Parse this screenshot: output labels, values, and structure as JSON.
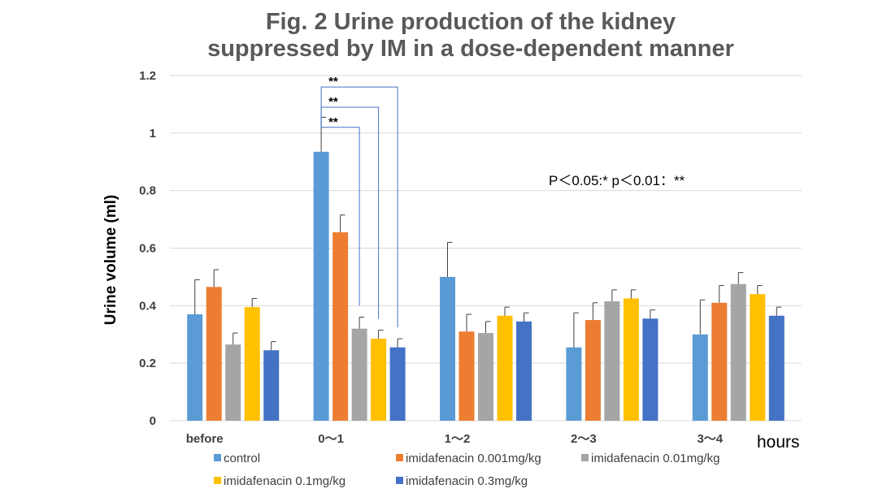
{
  "chart_data": {
    "type": "bar",
    "title_lines": [
      "Fig. 2 Urine production of the kidney",
      "suppressed by IM in a dose-dependent manner"
    ],
    "ylabel": "Urine volume (ml)",
    "xlabel": "hours",
    "ylim": [
      0,
      1.2
    ],
    "yticks": [
      "0",
      "0.2",
      "0.4",
      "0.6",
      "0.8",
      "1",
      "1.2"
    ],
    "categories": [
      "before",
      "0～1",
      "1～2",
      "2～3",
      "3～4"
    ],
    "grid": true,
    "legend_position": "bottom",
    "series": [
      {
        "name": "control",
        "color": "#5B9BD5",
        "values": [
          0.37,
          0.935,
          0.5,
          0.255,
          0.3
        ],
        "errors": [
          0.12,
          0.12,
          0.12,
          0.12,
          0.12
        ]
      },
      {
        "name": "imidafenacin 0.001mg/kg",
        "color": "#ED7D31",
        "values": [
          0.465,
          0.655,
          0.31,
          0.35,
          0.41
        ],
        "errors": [
          0.06,
          0.06,
          0.06,
          0.06,
          0.06
        ]
      },
      {
        "name": "imidafenacin 0.01mg/kg",
        "color": "#A5A5A5",
        "values": [
          0.265,
          0.32,
          0.305,
          0.415,
          0.475
        ],
        "errors": [
          0.04,
          0.04,
          0.04,
          0.04,
          0.04
        ]
      },
      {
        "name": "imidafenacin 0.1mg/kg",
        "color": "#FFC000",
        "values": [
          0.395,
          0.285,
          0.365,
          0.425,
          0.44
        ],
        "errors": [
          0.03,
          0.03,
          0.03,
          0.03,
          0.03
        ]
      },
      {
        "name": "imidafenacin 0.3mg/kg",
        "color": "#4472C4",
        "values": [
          0.245,
          0.255,
          0.345,
          0.355,
          0.365
        ],
        "errors": [
          0.03,
          0.03,
          0.03,
          0.03,
          0.03
        ]
      }
    ],
    "annotations": {
      "significance_note": "P＜0.05:* p＜0.01：**",
      "brackets": [
        {
          "category": "0～1",
          "from_series": 0,
          "to_series": 2,
          "y": 1.02,
          "label": "**"
        },
        {
          "category": "0～1",
          "from_series": 0,
          "to_series": 3,
          "y": 1.09,
          "label": "**"
        },
        {
          "category": "0～1",
          "from_series": 0,
          "to_series": 4,
          "y": 1.16,
          "label": "**"
        }
      ]
    }
  }
}
